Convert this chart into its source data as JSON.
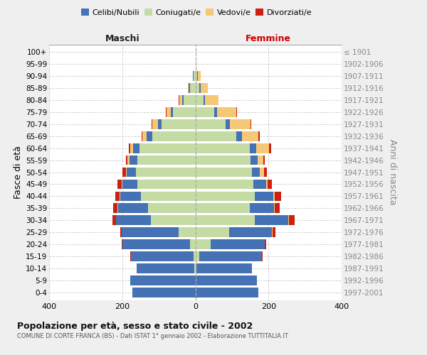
{
  "age_groups": [
    "0-4",
    "5-9",
    "10-14",
    "15-19",
    "20-24",
    "25-29",
    "30-34",
    "35-39",
    "40-44",
    "45-49",
    "50-54",
    "55-59",
    "60-64",
    "65-69",
    "70-74",
    "75-79",
    "80-84",
    "85-89",
    "90-94",
    "95-99",
    "100+"
  ],
  "birth_years": [
    "1997-2001",
    "1992-1996",
    "1987-1991",
    "1982-1986",
    "1977-1981",
    "1972-1976",
    "1967-1971",
    "1962-1966",
    "1957-1961",
    "1952-1956",
    "1947-1951",
    "1942-1946",
    "1937-1941",
    "1932-1936",
    "1927-1931",
    "1922-1926",
    "1917-1921",
    "1912-1916",
    "1907-1911",
    "1902-1906",
    "≤ 1901"
  ],
  "males_celibe": [
    172,
    178,
    158,
    172,
    185,
    155,
    95,
    82,
    58,
    42,
    25,
    22,
    18,
    15,
    10,
    5,
    4,
    3,
    1,
    0,
    0
  ],
  "males_coniugato": [
    0,
    0,
    2,
    5,
    15,
    46,
    122,
    130,
    148,
    158,
    162,
    158,
    152,
    118,
    92,
    62,
    32,
    15,
    5,
    0,
    0
  ],
  "males_vedovo": [
    0,
    0,
    0,
    0,
    0,
    0,
    1,
    1,
    1,
    2,
    3,
    5,
    8,
    12,
    15,
    12,
    8,
    3,
    1,
    0,
    0
  ],
  "males_divorziato": [
    0,
    0,
    0,
    1,
    2,
    5,
    8,
    12,
    12,
    12,
    10,
    5,
    4,
    2,
    2,
    2,
    1,
    0,
    0,
    0,
    0
  ],
  "females_nubile": [
    172,
    168,
    152,
    172,
    148,
    118,
    92,
    68,
    52,
    35,
    22,
    20,
    18,
    15,
    12,
    8,
    5,
    4,
    2,
    0,
    0
  ],
  "females_coniugata": [
    0,
    0,
    3,
    10,
    42,
    92,
    162,
    148,
    162,
    158,
    155,
    150,
    148,
    112,
    82,
    52,
    22,
    10,
    4,
    0,
    0
  ],
  "females_vedova": [
    0,
    0,
    0,
    0,
    0,
    1,
    2,
    2,
    3,
    5,
    10,
    15,
    36,
    46,
    56,
    52,
    36,
    20,
    8,
    2,
    0
  ],
  "females_divorziata": [
    0,
    0,
    0,
    1,
    3,
    8,
    15,
    12,
    18,
    12,
    8,
    5,
    5,
    3,
    3,
    2,
    1,
    1,
    0,
    0,
    0
  ],
  "colors": {
    "celibe": "#4472b4",
    "coniugato": "#c5dba4",
    "vedovo": "#f5c878",
    "divorziato": "#cc2010"
  },
  "xlim": 400,
  "title": "Popolazione per età, sesso e stato civile - 2002",
  "subtitle": "COMUNE DI CORTE FRANCA (BS) - Dati ISTAT 1° gennaio 2002 - Elaborazione TUTTITALIA.IT",
  "ylabel_left": "Fasce di età",
  "ylabel_right": "Anni di nascita",
  "label_maschi": "Maschi",
  "label_femmine": "Femmine",
  "legend_labels": [
    "Celibi/Nubili",
    "Coniugati/e",
    "Vedovi/e",
    "Divorziati/e"
  ],
  "bg_color": "#efefef",
  "plot_bg_color": "#ffffff"
}
